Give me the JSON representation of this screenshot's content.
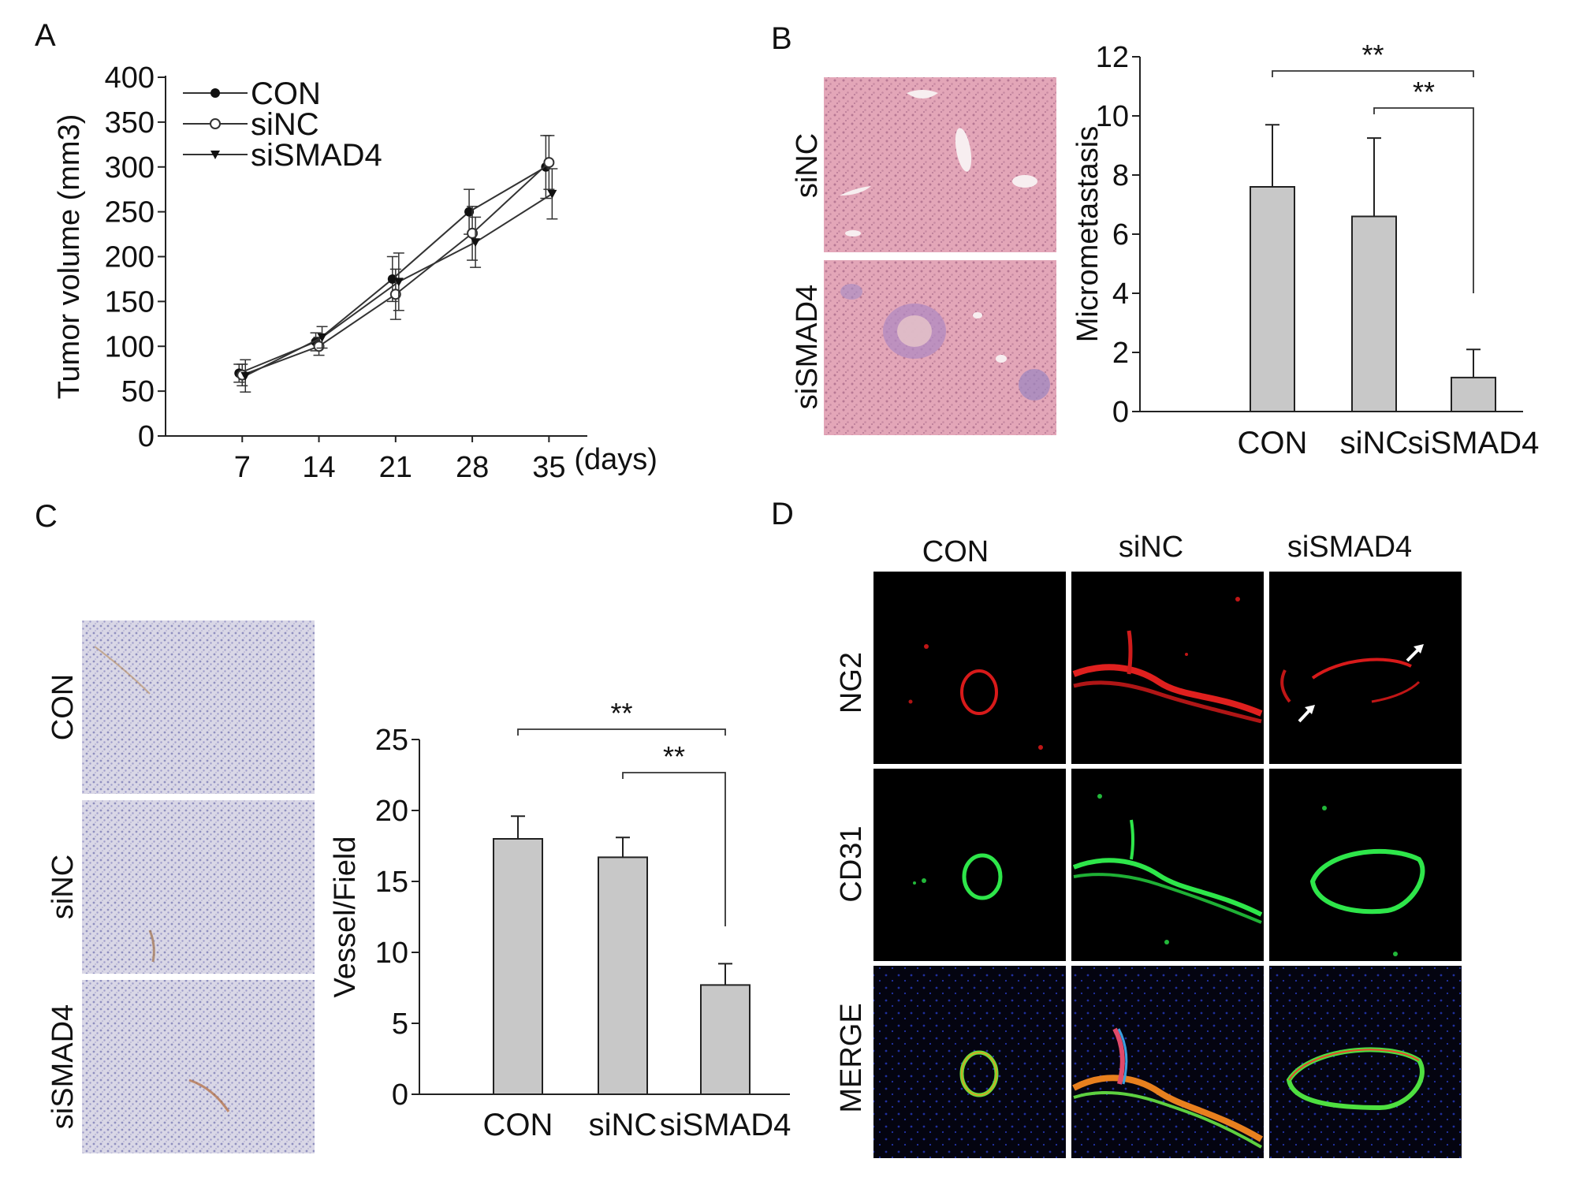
{
  "panels": {
    "A": {
      "letter": "A"
    },
    "B": {
      "letter": "B",
      "row_labels": [
        "siNC",
        "siSMAD4"
      ]
    },
    "C": {
      "letter": "C",
      "row_labels": [
        "CON",
        "siNC",
        "siSMAD4"
      ]
    },
    "D": {
      "letter": "D",
      "col_labels": [
        "CON",
        "siNC",
        "siSMAD4"
      ],
      "row_labels": [
        "NG2",
        "CD31",
        "MERGE"
      ],
      "colors": {
        "NG2": "#e8202a",
        "CD31": "#2ee64a",
        "MERGE": "#111111"
      }
    }
  },
  "chart_data": [
    {
      "id": "A",
      "type": "line",
      "x": [
        7,
        14,
        21,
        28,
        35
      ],
      "xlabel": "(days)",
      "ylabel": "Tumor volume (mm3)",
      "ylim": [
        0,
        400
      ],
      "yticks": [
        0,
        50,
        100,
        150,
        200,
        250,
        300,
        350,
        400
      ],
      "legend": "top-left",
      "series": [
        {
          "name": "CON",
          "marker": "filled-circle",
          "values": [
            70,
            105,
            175,
            250,
            300
          ],
          "err": [
            10,
            10,
            25,
            25,
            35
          ]
        },
        {
          "name": "siNC",
          "marker": "open-circle",
          "values": [
            68,
            100,
            158,
            226,
            305
          ],
          "err": [
            12,
            10,
            28,
            30,
            30
          ]
        },
        {
          "name": "siSMAD4",
          "marker": "filled-triangle",
          "values": [
            67,
            110,
            172,
            216,
            270
          ],
          "err": [
            18,
            12,
            32,
            28,
            28
          ]
        }
      ]
    },
    {
      "id": "B",
      "type": "bar",
      "categories": [
        "CON",
        "siNC",
        "siSMAD4"
      ],
      "values": [
        7.6,
        6.6,
        1.15
      ],
      "err": [
        2.1,
        2.65,
        0.95
      ],
      "ylabel": "Micrometastasis",
      "ylim": [
        0,
        12
      ],
      "yticks": [
        0,
        2,
        4,
        6,
        8,
        10,
        12
      ],
      "bar_color": "#c8c8c8",
      "significance": [
        {
          "from": "CON",
          "to": "siSMAD4",
          "label": "**"
        },
        {
          "from": "siNC",
          "to": "siSMAD4",
          "label": "**"
        }
      ]
    },
    {
      "id": "C",
      "type": "bar",
      "categories": [
        "CON",
        "siNC",
        "siSMAD4"
      ],
      "values": [
        18,
        16.7,
        7.7
      ],
      "err": [
        1.6,
        1.4,
        1.5
      ],
      "ylabel": "Vessel/Field",
      "ylim": [
        0,
        25
      ],
      "yticks": [
        0,
        5,
        10,
        15,
        20,
        25
      ],
      "bar_color": "#c8c8c8",
      "significance": [
        {
          "from": "CON",
          "to": "siSMAD4",
          "label": "**"
        },
        {
          "from": "siNC",
          "to": "siSMAD4",
          "label": "**"
        }
      ]
    }
  ]
}
